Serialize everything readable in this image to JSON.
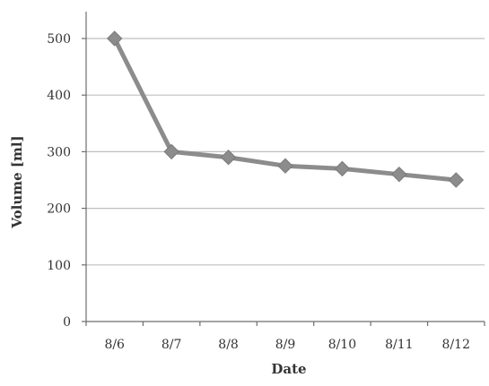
{
  "chart_data": {
    "type": "line",
    "categories": [
      "8/6",
      "8/7",
      "8/8",
      "8/9",
      "8/10",
      "8/11",
      "8/12"
    ],
    "series": [
      {
        "values": [
          500,
          300,
          290,
          275,
          270,
          260,
          250
        ]
      }
    ],
    "title": "",
    "xlabel": "Date",
    "ylabel": "Volume [ml]",
    "ylim": [
      0,
      500
    ],
    "yticks": [
      0,
      100,
      200,
      300,
      400,
      500
    ],
    "grid": "horizontal",
    "legend": "none",
    "marker": "diamond",
    "colors": {
      "series": "#8c8c8c",
      "grid": "#bfbfbf",
      "axis": "#6e6e6e",
      "text": "#333333"
    }
  }
}
